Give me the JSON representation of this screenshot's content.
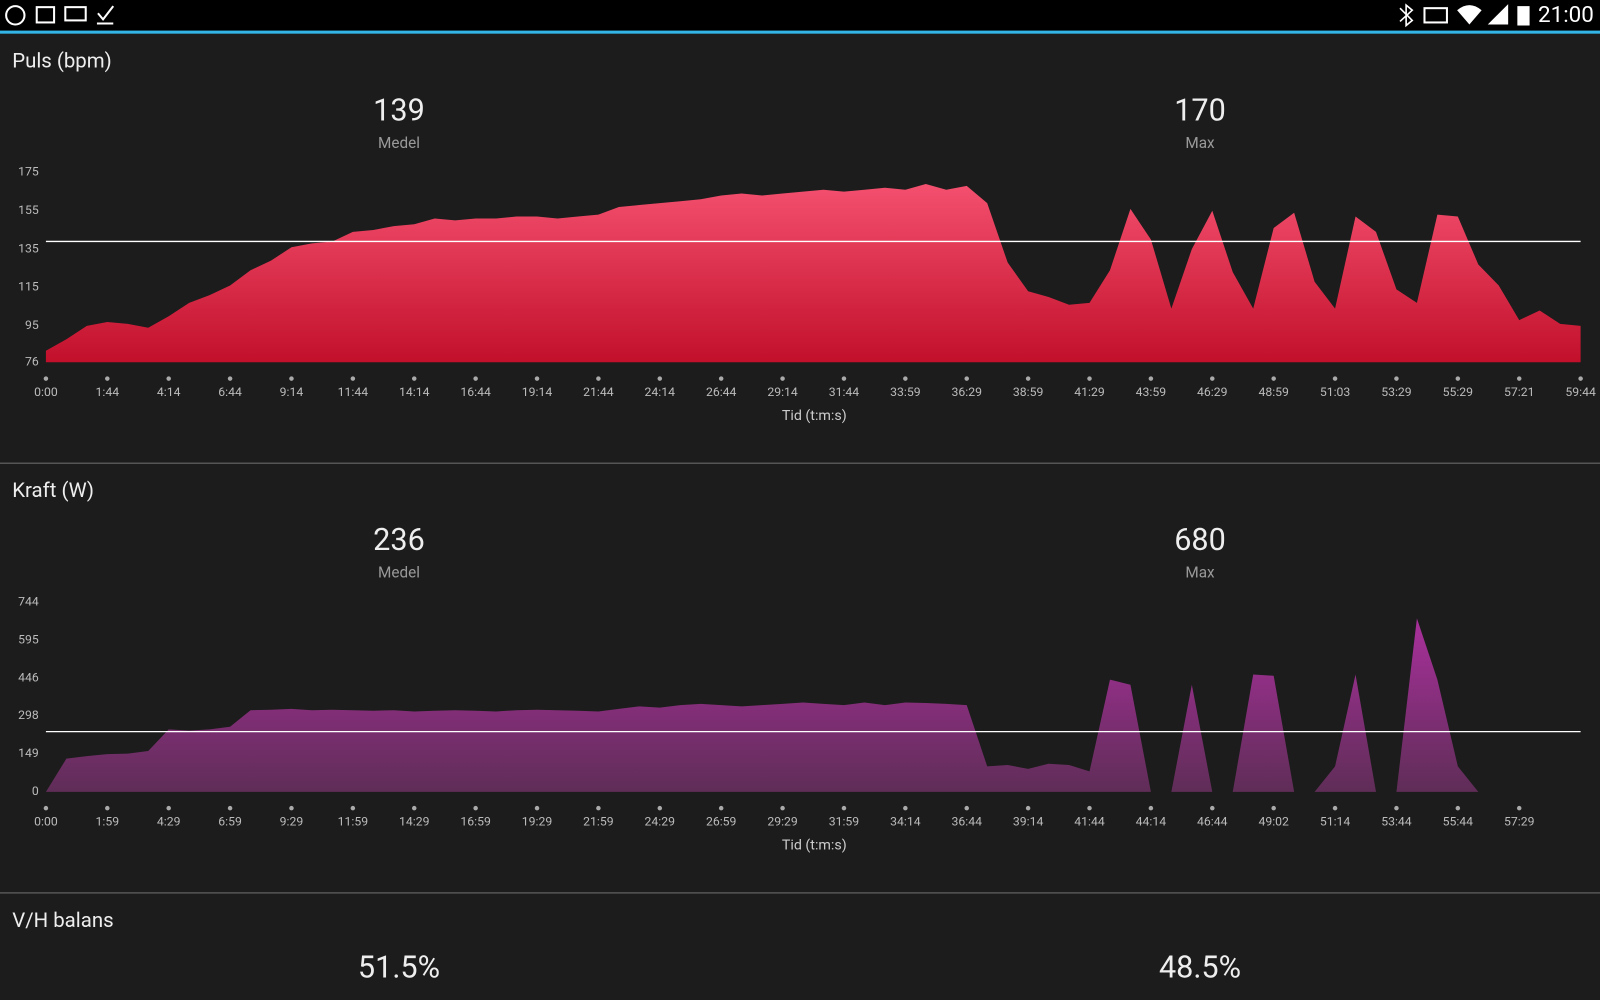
{
  "status_bar": {
    "time": "21:00"
  },
  "chart_data": [
    {
      "type": "area",
      "title": "Puls (bpm)",
      "stats": [
        {
          "value": 139,
          "label": "Medel"
        },
        {
          "value": 170,
          "label": "Max"
        }
      ],
      "x_label": "Tid (t:m:s)",
      "x_tick_labels": [
        "0:00",
        "1:44",
        "4:14",
        "6:44",
        "9:14",
        "11:44",
        "14:14",
        "16:44",
        "19:14",
        "21:44",
        "24:14",
        "26:44",
        "29:14",
        "31:44",
        "33:59",
        "36:29",
        "38:59",
        "41:29",
        "43:59",
        "46:29",
        "48:59",
        "51:03",
        "53:29",
        "55:29",
        "57:21",
        "59:44"
      ],
      "ylim": [
        76,
        175
      ],
      "yticks": [
        76,
        95,
        115,
        135,
        155,
        175
      ],
      "colors": [
        "#f4506f",
        "#c2102b"
      ],
      "values": [
        82,
        88,
        95,
        97,
        96,
        94,
        100,
        107,
        111,
        116,
        124,
        129,
        136,
        138,
        139,
        144,
        145,
        147,
        148,
        151,
        150,
        151,
        151,
        152,
        152,
        151,
        152,
        153,
        157,
        158,
        159,
        160,
        161,
        163,
        164,
        163,
        164,
        165,
        166,
        165,
        166,
        167,
        166,
        169,
        166,
        168,
        159,
        128,
        113,
        110,
        106,
        107,
        124,
        156,
        140,
        104,
        135,
        155,
        123,
        104,
        146,
        154,
        118,
        104,
        152,
        144,
        114,
        107,
        153,
        152,
        127,
        116,
        98,
        103,
        96,
        95
      ]
    },
    {
      "type": "area",
      "title": "Kraft (W)",
      "stats": [
        {
          "value": 236,
          "label": "Medel"
        },
        {
          "value": 680,
          "label": "Max"
        }
      ],
      "x_label": "Tid (t:m:s)",
      "x_tick_labels": [
        "0:00",
        "1:59",
        "4:29",
        "6:59",
        "9:29",
        "11:59",
        "14:29",
        "16:59",
        "19:29",
        "21:59",
        "24:29",
        "26:59",
        "29:29",
        "31:59",
        "34:14",
        "36:44",
        "39:14",
        "41:44",
        "44:14",
        "46:44",
        "49:02",
        "51:14",
        "53:44",
        "55:44",
        "57:29"
      ],
      "ylim": [
        0,
        744
      ],
      "yticks": [
        0,
        149,
        298,
        446,
        595,
        744
      ],
      "colors": [
        "#a9309c",
        "#5f2d57"
      ],
      "values": [
        0,
        130,
        140,
        148,
        150,
        160,
        245,
        240,
        245,
        255,
        320,
        322,
        325,
        320,
        322,
        320,
        318,
        320,
        315,
        318,
        320,
        318,
        315,
        320,
        322,
        320,
        318,
        315,
        325,
        335,
        330,
        340,
        345,
        340,
        335,
        340,
        345,
        350,
        345,
        340,
        350,
        340,
        350,
        348,
        345,
        340,
        100,
        105,
        90,
        110,
        105,
        80,
        440,
        420,
        0,
        0,
        420,
        0,
        0,
        460,
        455,
        0,
        0,
        100,
        460,
        0,
        0,
        680,
        440,
        100,
        0,
        null,
        null,
        null,
        null,
        null
      ]
    }
  ],
  "balance": {
    "title": "V/H balans",
    "left": "51.5%",
    "right": "48.5%"
  }
}
